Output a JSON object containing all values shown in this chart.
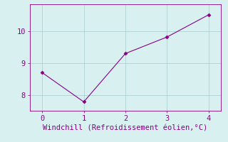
{
  "x": [
    0,
    1,
    2,
    3,
    4
  ],
  "y": [
    8.7,
    7.78,
    9.3,
    9.82,
    10.52
  ],
  "line_color": "#880088",
  "marker": "D",
  "marker_size": 2.5,
  "xlabel": "Windchill (Refroidissement éolien,°C)",
  "xlabel_color": "#880088",
  "xlabel_fontsize": 7.5,
  "ylim": [
    7.5,
    10.85
  ],
  "xlim": [
    -0.3,
    4.3
  ],
  "yticks": [
    8,
    9,
    10
  ],
  "xticks": [
    0,
    1,
    2,
    3,
    4
  ],
  "bg_color": "#d8f0f0",
  "grid_color": "#aacccc",
  "tick_color": "#880088",
  "tick_fontsize": 7.5,
  "spine_color": "#880088",
  "linewidth": 0.8
}
